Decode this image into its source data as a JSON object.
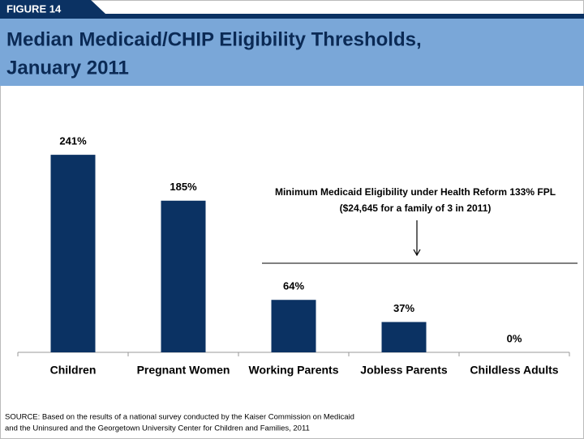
{
  "chart_data": {
    "type": "bar",
    "figure_label": "FIGURE 14",
    "title": [
      "Median Medicaid/CHIP Eligibility Thresholds,",
      "January 2011"
    ],
    "categories": [
      "Children",
      "Pregnant Women",
      "Working Parents",
      "Jobless Parents",
      "Childless Adults"
    ],
    "values": [
      241,
      185,
      64,
      37,
      0
    ],
    "value_labels": [
      "241%",
      "185%",
      "64%",
      "37%",
      "0%"
    ],
    "color": "#0b3263",
    "annotation": [
      "Minimum Medicaid Eligibility under Health Reform 133% FPL",
      "($24,645 for a family of 3 in 2011)"
    ],
    "source": [
      "SOURCE: Based on the results of a national survey conducted by the Kaiser Commission on Medicaid",
      "and the Uninsured and the Georgetown University Center for Children and Families, 2011"
    ]
  }
}
